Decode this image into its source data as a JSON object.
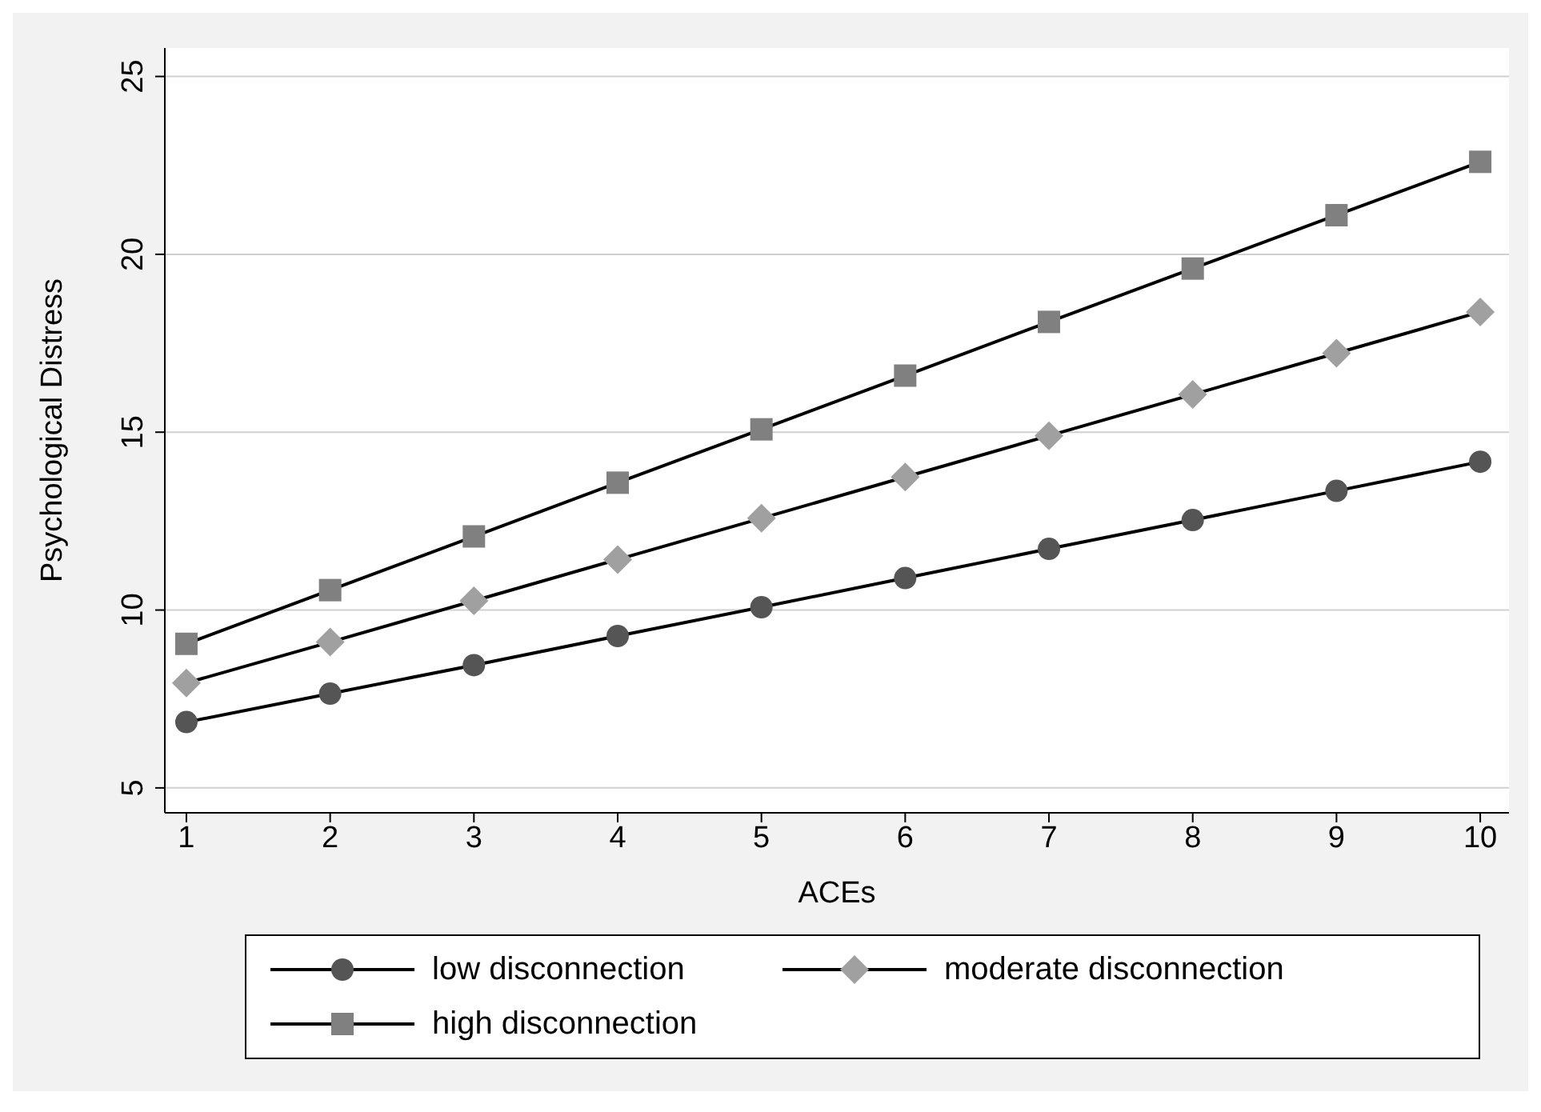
{
  "chart_data": {
    "type": "line",
    "xlabel": "ACEs",
    "ylabel": "Psychological Distress",
    "x": [
      1,
      2,
      3,
      4,
      5,
      6,
      7,
      8,
      9,
      10
    ],
    "xlim": [
      0.85,
      10.2
    ],
    "xticks": [
      1,
      2,
      3,
      4,
      5,
      6,
      7,
      8,
      9,
      10
    ],
    "ylim": [
      4.3,
      25.8
    ],
    "yticks": [
      5,
      10,
      15,
      20,
      25
    ],
    "grid": "y",
    "legend": "bottom",
    "series": [
      {
        "name": "low disconnection",
        "color": "#555555",
        "marker": "circle",
        "values": [
          6.85,
          7.65,
          8.45,
          9.27,
          10.08,
          10.9,
          11.72,
          12.53,
          13.35,
          14.17
        ]
      },
      {
        "name": "moderate disconnection",
        "color": "#a0a0a0",
        "marker": "diamond",
        "values": [
          7.95,
          9.1,
          10.26,
          11.42,
          12.58,
          13.74,
          14.9,
          16.06,
          17.22,
          18.38
        ]
      },
      {
        "name": "high disconnection",
        "color": "#808080",
        "marker": "square",
        "values": [
          9.05,
          10.56,
          12.07,
          13.58,
          15.08,
          16.59,
          18.1,
          19.6,
          21.1,
          22.6
        ]
      }
    ]
  }
}
